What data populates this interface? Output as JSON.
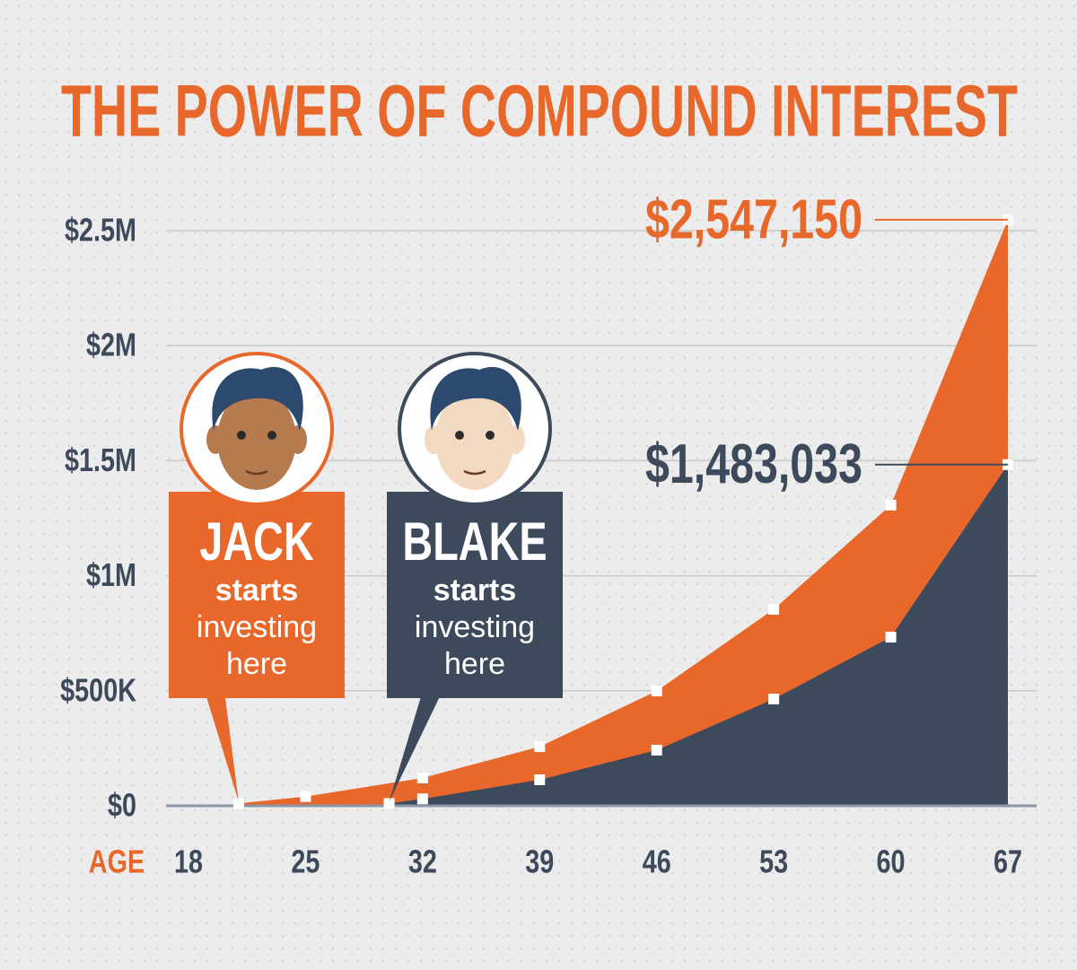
{
  "chart_data": {
    "type": "area",
    "title": "THE POWER OF COMPOUND INTEREST",
    "x_label": "AGE",
    "xlim": [
      18,
      67
    ],
    "xticks": [
      18,
      25,
      32,
      39,
      46,
      53,
      60,
      67
    ],
    "ylim": [
      0,
      2500000
    ],
    "yticks": [
      {
        "value": 0,
        "label": "$0"
      },
      {
        "value": 500000,
        "label": "$500K"
      },
      {
        "value": 1000000,
        "label": "$1M"
      },
      {
        "value": 1500000,
        "label": "$1.5M"
      },
      {
        "value": 2000000,
        "label": "$2M"
      },
      {
        "value": 2500000,
        "label": "$2.5M"
      }
    ],
    "grid": true,
    "series": [
      {
        "name": "JACK",
        "color": "#e8672a",
        "lines": [
          "starts",
          "investing",
          "here"
        ],
        "x": [
          21,
          25,
          32,
          39,
          46,
          53,
          60,
          67
        ],
        "values": [
          10000,
          40000,
          121000,
          257000,
          499000,
          854000,
          1307000,
          2547150
        ],
        "value_labels": [
          null,
          null,
          null,
          null,
          null,
          null,
          null,
          "$2,547,150"
        ]
      },
      {
        "name": "BLAKE",
        "color": "#3d4a5c",
        "lines": [
          "starts",
          "investing",
          "here"
        ],
        "x": [
          30,
          32,
          39,
          46,
          53,
          60,
          67
        ],
        "values": [
          10000,
          30000,
          113000,
          242000,
          464000,
          733000,
          1483033
        ],
        "value_labels": [
          null,
          null,
          null,
          null,
          null,
          null,
          "$1,483,033"
        ]
      }
    ]
  }
}
